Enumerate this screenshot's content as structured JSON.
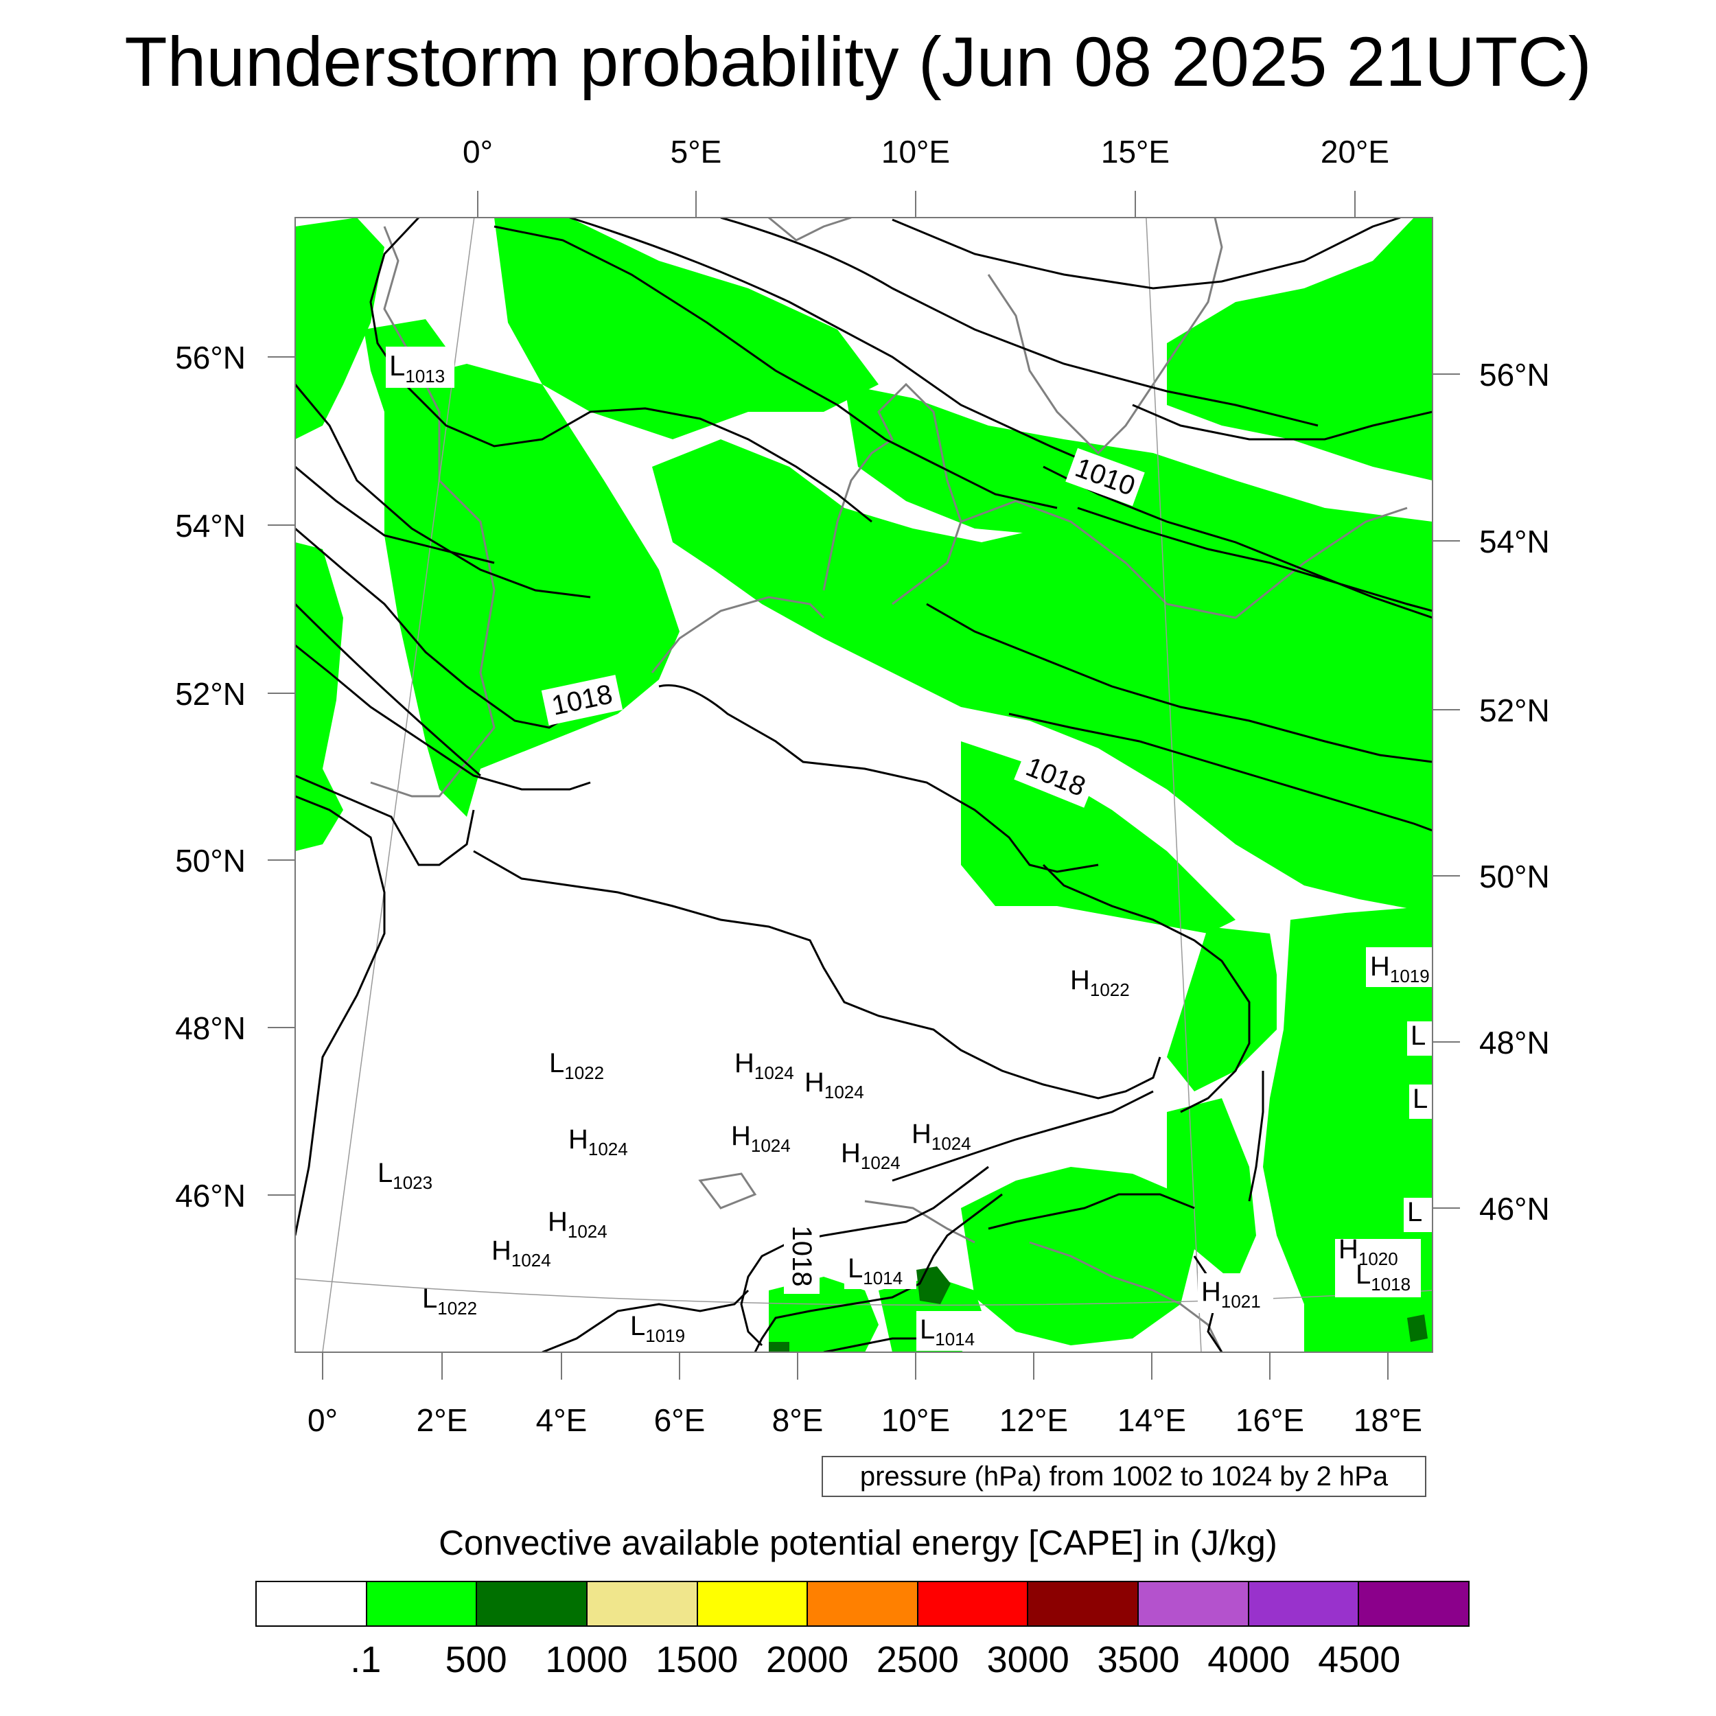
{
  "title": "Thunderstorm probability (Jun 08 2025 21UTC)",
  "map": {
    "top_lon_labels": [
      "0°",
      "5°E",
      "10°E",
      "15°E",
      "20°E"
    ],
    "bottom_lon_labels": [
      "0°",
      "2°E",
      "4°E",
      "6°E",
      "8°E",
      "10°E",
      "12°E",
      "14°E",
      "16°E",
      "18°E"
    ],
    "left_lat_labels": [
      "56°N",
      "54°N",
      "52°N",
      "50°N",
      "48°N",
      "46°N"
    ],
    "right_lat_labels": [
      "56°N",
      "54°N",
      "52°N",
      "50°N",
      "48°N",
      "46°N"
    ],
    "contour_labels": [
      "1010",
      "1018",
      "1018",
      "1018"
    ],
    "pressure_centers": [
      {
        "type": "L",
        "value": "1013"
      },
      {
        "type": "H",
        "value": "1022"
      },
      {
        "type": "H",
        "value": "1019"
      },
      {
        "type": "L",
        "value": "1022"
      },
      {
        "type": "H",
        "value": "1024"
      },
      {
        "type": "H",
        "value": "1024"
      },
      {
        "type": "H",
        "value": "1024"
      },
      {
        "type": "H",
        "value": "1024"
      },
      {
        "type": "H",
        "value": "1024"
      },
      {
        "type": "H",
        "value": "1024"
      },
      {
        "type": "L",
        "value": "1023"
      },
      {
        "type": "H",
        "value": "1024"
      },
      {
        "type": "H",
        "value": "1024"
      },
      {
        "type": "L",
        "value": "1014"
      },
      {
        "type": "L",
        "value": "1022"
      },
      {
        "type": "L",
        "value": "1019"
      },
      {
        "type": "L",
        "value": "1014"
      },
      {
        "type": "H",
        "value": "1021"
      },
      {
        "type": "H",
        "value": "1020"
      },
      {
        "type": "L",
        "value": "1018"
      }
    ],
    "colors": {
      "cape_low": "#00ff00",
      "cape_mid": "#007000",
      "coast": "#808080",
      "isobar": "#000000"
    }
  },
  "pressure_note": "pressure (hPa) from 1002 to 1024 by 2 hPa",
  "cape_label": "Convective available potential energy [CAPE] in (J/kg)",
  "colorbar": {
    "colors": [
      "#ffffff",
      "#00ff00",
      "#007000",
      "#f0e68c",
      "#ffff00",
      "#ff8000",
      "#ff0000",
      "#8b0000",
      "#b452cd",
      "#9932cc",
      "#8b008b"
    ],
    "labels": [
      ".1",
      "500",
      "1000",
      "1500",
      "2000",
      "2500",
      "3000",
      "3500",
      "4000",
      "4500"
    ]
  }
}
